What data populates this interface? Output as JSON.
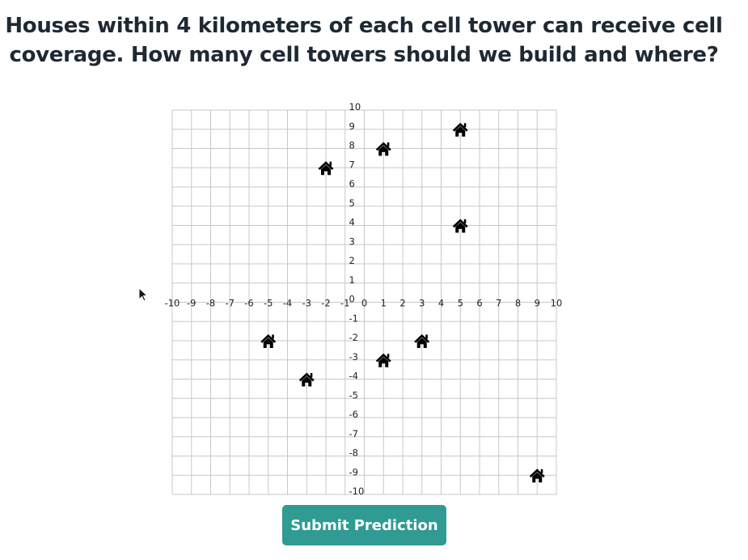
{
  "question": {
    "line1": "Houses within 4 kilometers of each cell tower can receive cell",
    "line2": "coverage. How many cell towers should we build and where?"
  },
  "grid": {
    "x_range": [
      -10,
      10
    ],
    "y_range": [
      -10,
      10
    ],
    "step": 1,
    "grid_color": "#c8c8c8",
    "house_icon": "house-icon"
  },
  "chart_data": {
    "type": "scatter",
    "title": "",
    "xlabel": "",
    "ylabel": "",
    "xlim": [
      -10,
      10
    ],
    "ylim": [
      -10,
      10
    ],
    "grid": true,
    "x_ticks": [
      -10,
      -9,
      -8,
      -7,
      -6,
      -5,
      -4,
      -3,
      -2,
      -1,
      0,
      1,
      2,
      3,
      4,
      5,
      6,
      7,
      8,
      9,
      10
    ],
    "y_ticks": [
      -10,
      -9,
      -8,
      -7,
      -6,
      -5,
      -4,
      -3,
      -2,
      -1,
      0,
      1,
      2,
      3,
      4,
      5,
      6,
      7,
      8,
      9,
      10
    ],
    "points": [
      {
        "x": -2,
        "y": 7
      },
      {
        "x": 1,
        "y": 8
      },
      {
        "x": 5,
        "y": 9
      },
      {
        "x": 5,
        "y": 4
      },
      {
        "x": -5,
        "y": -2
      },
      {
        "x": -3,
        "y": -4
      },
      {
        "x": 1,
        "y": -3
      },
      {
        "x": 3,
        "y": -2
      },
      {
        "x": 9,
        "y": -9
      }
    ]
  },
  "buttons": {
    "submit_label": "Submit Prediction",
    "submit_color": "#2f9b92"
  }
}
